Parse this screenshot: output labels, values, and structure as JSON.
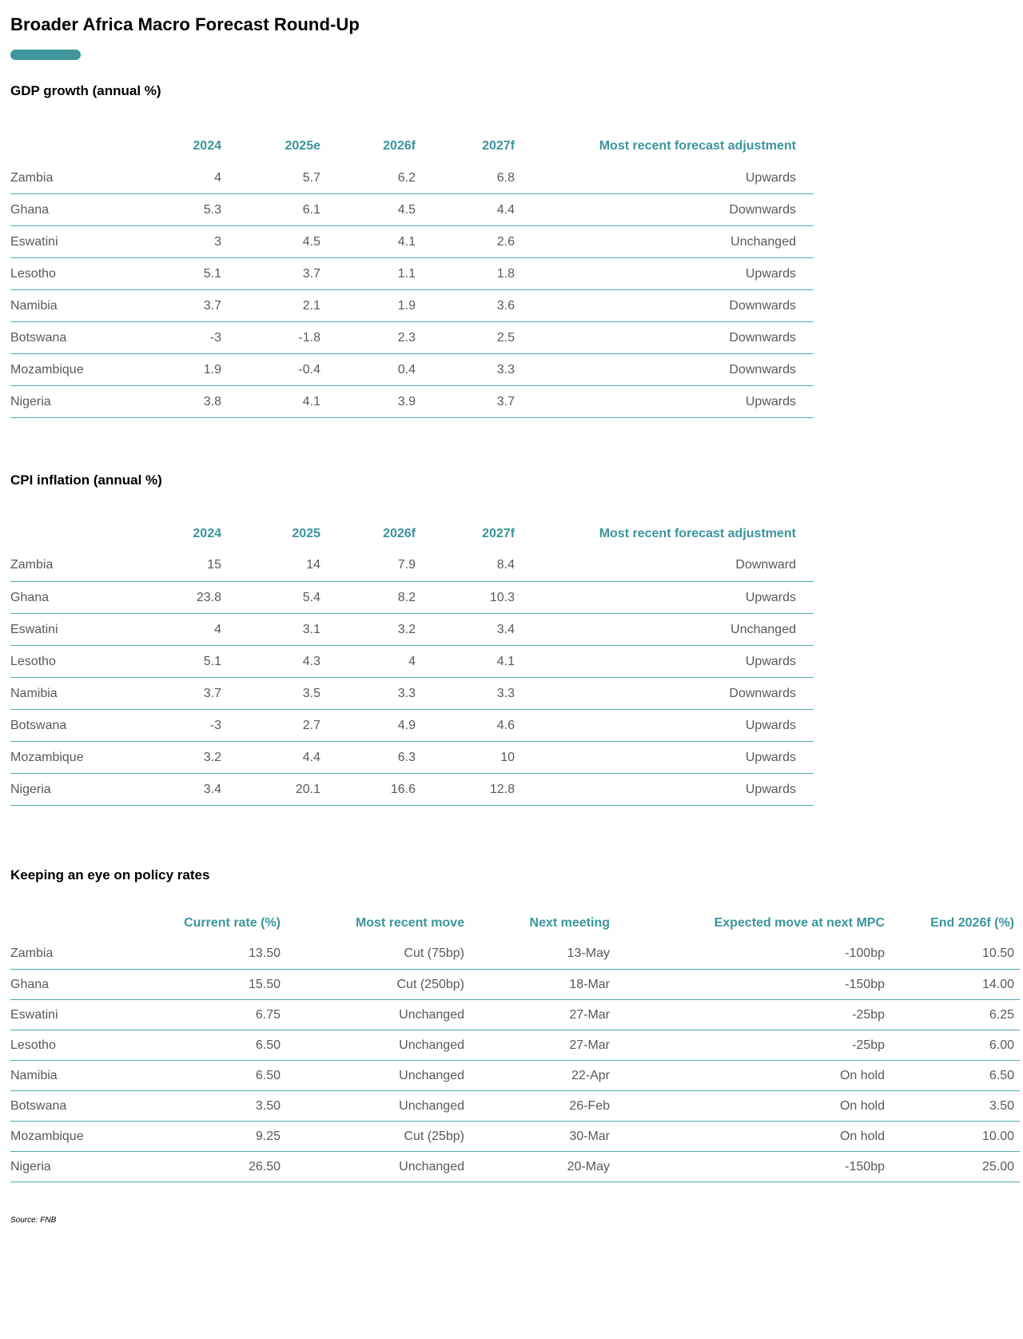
{
  "page": {
    "title": "Broader Africa Macro Forecast Round-Up",
    "source_note": "Source: FNB",
    "accent_color": "#3F969C",
    "line_color": "#55A8AE",
    "header_text_color": "#3A959D",
    "body_text_color": "#58595B"
  },
  "tables": [
    {
      "heading": "GDP growth (annual %)",
      "columns": [
        "",
        "2024",
        "2025e",
        "2026f",
        "2027f",
        "Most recent forecast adjustment"
      ],
      "rows": [
        [
          "Zambia",
          "4",
          "5.7",
          "6.2",
          "6.8",
          "Upwards"
        ],
        [
          "Ghana",
          "5.3",
          "6.1",
          "4.5",
          "4.4",
          "Downwards"
        ],
        [
          "Eswatini",
          "3",
          "4.5",
          "4.1",
          "2.6",
          "Unchanged"
        ],
        [
          "Lesotho",
          "5.1",
          "3.7",
          "1.1",
          "1.8",
          "Upwards"
        ],
        [
          "Namibia",
          "3.7",
          "2.1",
          "1.9",
          "3.6",
          "Downwards"
        ],
        [
          "Botswana",
          "-3",
          "-1.8",
          "2.3",
          "2.5",
          "Downwards"
        ],
        [
          "Mozambique",
          "1.9",
          "-0.4",
          "0.4",
          "3.3",
          "Downwards"
        ],
        [
          "Nigeria",
          "3.8",
          "4.1",
          "3.9",
          "3.7",
          "Upwards"
        ]
      ]
    },
    {
      "heading": "CPI inflation (annual %)",
      "columns": [
        "",
        "2024",
        "2025",
        "2026f",
        "2027f",
        "Most recent forecast adjustment"
      ],
      "rows": [
        [
          "Zambia",
          "15",
          "14",
          "7.9",
          "8.4",
          "Downward"
        ],
        [
          "Ghana",
          "23.8",
          "5.4",
          "8.2",
          "10.3",
          "Upwards"
        ],
        [
          "Eswatini",
          "4",
          "3.1",
          "3.2",
          "3.4",
          "Unchanged"
        ],
        [
          "Lesotho",
          "5.1",
          "4.3",
          "4",
          "4.1",
          "Upwards"
        ],
        [
          "Namibia",
          "3.7",
          "3.5",
          "3.3",
          "3.3",
          "Downwards"
        ],
        [
          "Botswana",
          "-3",
          "2.7",
          "4.9",
          "4.6",
          "Upwards"
        ],
        [
          "Mozambique",
          "3.2",
          "4.4",
          "6.3",
          "10",
          "Upwards"
        ],
        [
          "Nigeria",
          "3.4",
          "20.1",
          "16.6",
          "12.8",
          "Upwards"
        ]
      ]
    },
    {
      "heading": "Keeping an eye on policy rates",
      "columns": [
        "",
        "Current rate (%)",
        "Most recent move",
        "Next meeting",
        "Expected move at next MPC",
        "End 2026f (%)"
      ],
      "rows": [
        [
          "Zambia",
          "13.50",
          "Cut (75bp)",
          "13-May",
          "-100bp",
          "10.50"
        ],
        [
          "Ghana",
          "15.50",
          "Cut (250bp)",
          "18-Mar",
          "-150bp",
          "14.00"
        ],
        [
          "Eswatini",
          "6.75",
          "Unchanged",
          "27-Mar",
          "-25bp",
          "6.25"
        ],
        [
          "Lesotho",
          "6.50",
          "Unchanged",
          "27-Mar",
          "-25bp",
          "6.00"
        ],
        [
          "Namibia",
          "6.50",
          "Unchanged",
          "22-Apr",
          "On hold",
          "6.50"
        ],
        [
          "Botswana",
          "3.50",
          "Unchanged",
          "26-Feb",
          "On hold",
          "3.50"
        ],
        [
          "Mozambique",
          "9.25",
          "Cut (25bp)",
          "30-Mar",
          "On hold",
          "10.00"
        ],
        [
          "Nigeria",
          "26.50",
          "Unchanged",
          "20-May",
          "-150bp",
          "25.00"
        ]
      ]
    }
  ]
}
